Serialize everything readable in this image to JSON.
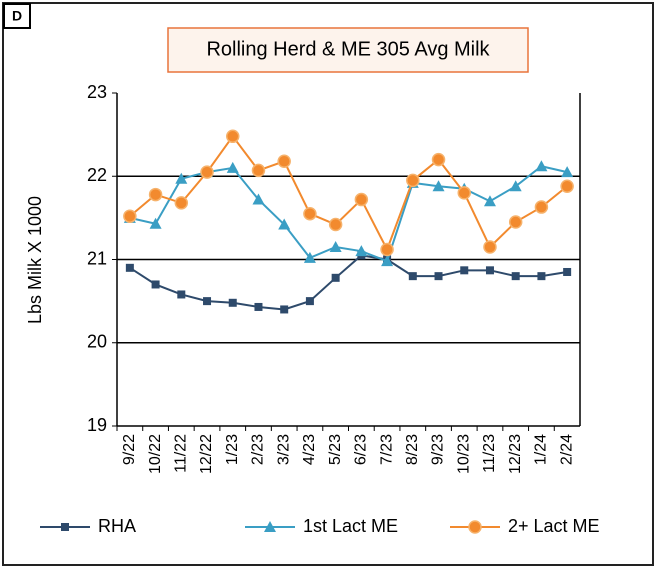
{
  "panel_label": "D",
  "chart_data": {
    "type": "line",
    "title": "Rolling Herd & ME 305 Avg Milk",
    "y_label": "Lbs Milk X 1000",
    "categories": [
      "9/22",
      "10/22",
      "11/22",
      "12/22",
      "1/23",
      "2/23",
      "3/23",
      "4/23",
      "5/23",
      "6/23",
      "7/23",
      "8/23",
      "9/23",
      "10/23",
      "11/23",
      "12/23",
      "1/24",
      "2/24"
    ],
    "ylim": [
      19,
      23
    ],
    "yticks": [
      19,
      20,
      21,
      22,
      23
    ],
    "grid": true,
    "series": [
      {
        "name": "RHA",
        "color": "#2e4a6b",
        "marker": "square",
        "values": [
          20.9,
          20.7,
          20.58,
          20.5,
          20.48,
          20.43,
          20.4,
          20.5,
          20.78,
          21.05,
          21.0,
          20.8,
          20.8,
          20.87,
          20.87,
          20.8,
          20.8,
          20.85
        ]
      },
      {
        "name": "1st Lact ME",
        "color": "#3a9ec4",
        "marker": "triangle",
        "values": [
          21.5,
          21.43,
          21.97,
          22.05,
          22.1,
          21.72,
          21.42,
          21.02,
          21.15,
          21.1,
          20.98,
          21.92,
          21.88,
          21.85,
          21.7,
          21.88,
          22.12,
          22.05
        ]
      },
      {
        "name": "2+ Lact ME",
        "color": "#f28a2e",
        "marker": "circle",
        "values": [
          21.52,
          21.78,
          21.68,
          22.05,
          22.48,
          22.07,
          22.18,
          21.55,
          21.42,
          21.72,
          21.12,
          21.95,
          22.2,
          21.8,
          21.15,
          21.45,
          21.63,
          21.88
        ]
      }
    ],
    "legend": "bottom"
  }
}
